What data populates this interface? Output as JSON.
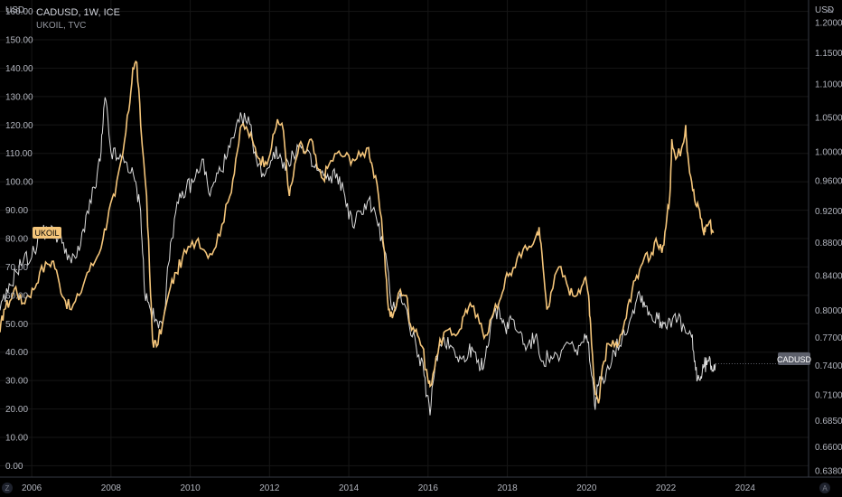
{
  "chart_data": {
    "type": "line",
    "title": "CADUSD, 1W, ICE",
    "subtitle": "UKOIL, TVC",
    "left_axis": {
      "unit": "USD",
      "range": [
        -4,
        164
      ],
      "ticks": [
        "160.00",
        "150.00",
        "140.00",
        "130.00",
        "120.00",
        "110.00",
        "100.00",
        "90.00",
        "80.00",
        "70.00",
        "60.00",
        "50.00",
        "40.00",
        "30.00",
        "20.00",
        "10.00",
        "0.00"
      ]
    },
    "right_axis": {
      "unit": "USD",
      "scale": "log",
      "range": [
        0.6325,
        1.2386
      ],
      "ticks": [
        "1.2000",
        "1.1500",
        "1.1000",
        "1.0500",
        "1.0000",
        "0.9600",
        "0.9200",
        "0.8800",
        "0.8400",
        "0.8000",
        "0.7700",
        "0.7400",
        "0.7100",
        "0.6850",
        "0.6600",
        "0.6380"
      ]
    },
    "x_axis": {
      "range": [
        2005.2,
        2025.6
      ],
      "ticks": [
        "2006",
        "2008",
        "2010",
        "2012",
        "2014",
        "2016",
        "2018",
        "2020",
        "2022",
        "2024"
      ]
    },
    "series": [
      {
        "name": "UKOIL",
        "color": "#f4c57a",
        "axis": "left",
        "last_value_label": "UKOIL",
        "points": [
          [
            2005.2,
            47
          ],
          [
            2005.3,
            55
          ],
          [
            2005.45,
            58
          ],
          [
            2005.6,
            63
          ],
          [
            2005.75,
            57
          ],
          [
            2005.9,
            60
          ],
          [
            2006.05,
            62
          ],
          [
            2006.2,
            68
          ],
          [
            2006.4,
            71
          ],
          [
            2006.55,
            72
          ],
          [
            2006.7,
            64
          ],
          [
            2006.85,
            58
          ],
          [
            2007.0,
            55
          ],
          [
            2007.2,
            60
          ],
          [
            2007.4,
            68
          ],
          [
            2007.6,
            72
          ],
          [
            2007.8,
            80
          ],
          [
            2007.95,
            90
          ],
          [
            2008.1,
            95
          ],
          [
            2008.3,
            110
          ],
          [
            2008.45,
            125
          ],
          [
            2008.55,
            140
          ],
          [
            2008.65,
            142
          ],
          [
            2008.75,
            120
          ],
          [
            2008.9,
            95
          ],
          [
            2009.0,
            60
          ],
          [
            2009.05,
            44
          ],
          [
            2009.15,
            42
          ],
          [
            2009.3,
            50
          ],
          [
            2009.5,
            63
          ],
          [
            2009.65,
            68
          ],
          [
            2009.8,
            73
          ],
          [
            2010.0,
            77
          ],
          [
            2010.2,
            80
          ],
          [
            2010.4,
            75
          ],
          [
            2010.6,
            76
          ],
          [
            2010.8,
            85
          ],
          [
            2011.0,
            95
          ],
          [
            2011.15,
            108
          ],
          [
            2011.3,
            120
          ],
          [
            2011.45,
            118
          ],
          [
            2011.6,
            113
          ],
          [
            2011.75,
            108
          ],
          [
            2011.9,
            107
          ],
          [
            2012.05,
            112
          ],
          [
            2012.2,
            122
          ],
          [
            2012.35,
            118
          ],
          [
            2012.5,
            95
          ],
          [
            2012.6,
            102
          ],
          [
            2012.75,
            113
          ],
          [
            2012.9,
            110
          ],
          [
            2013.05,
            115
          ],
          [
            2013.2,
            105
          ],
          [
            2013.35,
            101
          ],
          [
            2013.5,
            106
          ],
          [
            2013.7,
            110
          ],
          [
            2013.9,
            109
          ],
          [
            2014.1,
            108
          ],
          [
            2014.3,
            109
          ],
          [
            2014.5,
            112
          ],
          [
            2014.6,
            105
          ],
          [
            2014.75,
            95
          ],
          [
            2014.9,
            75
          ],
          [
            2015.0,
            55
          ],
          [
            2015.1,
            52
          ],
          [
            2015.3,
            62
          ],
          [
            2015.45,
            60
          ],
          [
            2015.55,
            50
          ],
          [
            2015.7,
            48
          ],
          [
            2015.85,
            42
          ],
          [
            2016.0,
            30
          ],
          [
            2016.05,
            28
          ],
          [
            2016.2,
            38
          ],
          [
            2016.4,
            47
          ],
          [
            2016.6,
            46
          ],
          [
            2016.8,
            48
          ],
          [
            2016.95,
            55
          ],
          [
            2017.1,
            56
          ],
          [
            2017.3,
            50
          ],
          [
            2017.45,
            46
          ],
          [
            2017.6,
            52
          ],
          [
            2017.8,
            58
          ],
          [
            2017.95,
            66
          ],
          [
            2018.1,
            67
          ],
          [
            2018.3,
            75
          ],
          [
            2018.5,
            76
          ],
          [
            2018.7,
            80
          ],
          [
            2018.8,
            84
          ],
          [
            2018.9,
            70
          ],
          [
            2019.0,
            55
          ],
          [
            2019.1,
            61
          ],
          [
            2019.3,
            70
          ],
          [
            2019.5,
            64
          ],
          [
            2019.65,
            60
          ],
          [
            2019.8,
            62
          ],
          [
            2019.95,
            66
          ],
          [
            2020.05,
            60
          ],
          [
            2020.1,
            50
          ],
          [
            2020.2,
            28
          ],
          [
            2020.3,
            22
          ],
          [
            2020.4,
            35
          ],
          [
            2020.55,
            43
          ],
          [
            2020.7,
            42
          ],
          [
            2020.85,
            46
          ],
          [
            2021.0,
            52
          ],
          [
            2021.15,
            62
          ],
          [
            2021.3,
            66
          ],
          [
            2021.45,
            73
          ],
          [
            2021.6,
            73
          ],
          [
            2021.75,
            80
          ],
          [
            2021.9,
            75
          ],
          [
            2022.0,
            84
          ],
          [
            2022.1,
            95
          ],
          [
            2022.15,
            115
          ],
          [
            2022.25,
            108
          ],
          [
            2022.4,
            112
          ],
          [
            2022.5,
            120
          ],
          [
            2022.55,
            110
          ],
          [
            2022.65,
            100
          ],
          [
            2022.75,
            92
          ],
          [
            2022.85,
            90
          ],
          [
            2022.95,
            82
          ],
          [
            2023.0,
            84
          ],
          [
            2023.1,
            86
          ],
          [
            2023.2,
            82
          ]
        ]
      },
      {
        "name": "CADUSD",
        "color": "#dcdcdc",
        "axis": "right",
        "last_value_label": "CADUSD",
        "points": [
          [
            2005.2,
            0.8
          ],
          [
            2005.4,
            0.82
          ],
          [
            2005.6,
            0.845
          ],
          [
            2005.8,
            0.86
          ],
          [
            2006.0,
            0.862
          ],
          [
            2006.2,
            0.89
          ],
          [
            2006.4,
            0.895
          ],
          [
            2006.6,
            0.89
          ],
          [
            2006.8,
            0.88
          ],
          [
            2007.0,
            0.855
          ],
          [
            2007.2,
            0.87
          ],
          [
            2007.4,
            0.92
          ],
          [
            2007.6,
            0.95
          ],
          [
            2007.75,
            1.0
          ],
          [
            2007.85,
            1.08
          ],
          [
            2008.0,
            1.0
          ],
          [
            2008.2,
            0.99
          ],
          [
            2008.4,
            0.985
          ],
          [
            2008.6,
            0.96
          ],
          [
            2008.75,
            0.92
          ],
          [
            2008.85,
            0.82
          ],
          [
            2009.0,
            0.8
          ],
          [
            2009.2,
            0.78
          ],
          [
            2009.35,
            0.8
          ],
          [
            2009.5,
            0.88
          ],
          [
            2009.7,
            0.93
          ],
          [
            2009.9,
            0.95
          ],
          [
            2010.1,
            0.96
          ],
          [
            2010.3,
            0.99
          ],
          [
            2010.5,
            0.94
          ],
          [
            2010.7,
            0.97
          ],
          [
            2010.9,
            0.99
          ],
          [
            2011.1,
            1.02
          ],
          [
            2011.3,
            1.05
          ],
          [
            2011.5,
            1.04
          ],
          [
            2011.7,
            0.98
          ],
          [
            2011.9,
            0.97
          ],
          [
            2012.1,
            1.0
          ],
          [
            2012.3,
            0.99
          ],
          [
            2012.5,
            0.98
          ],
          [
            2012.7,
            1.01
          ],
          [
            2012.9,
            1.0
          ],
          [
            2013.1,
            0.98
          ],
          [
            2013.3,
            0.97
          ],
          [
            2013.5,
            0.96
          ],
          [
            2013.7,
            0.97
          ],
          [
            2013.9,
            0.94
          ],
          [
            2014.1,
            0.9
          ],
          [
            2014.3,
            0.92
          ],
          [
            2014.5,
            0.935
          ],
          [
            2014.7,
            0.91
          ],
          [
            2014.9,
            0.87
          ],
          [
            2015.1,
            0.8
          ],
          [
            2015.3,
            0.82
          ],
          [
            2015.5,
            0.79
          ],
          [
            2015.7,
            0.76
          ],
          [
            2015.9,
            0.73
          ],
          [
            2016.05,
            0.69
          ],
          [
            2016.2,
            0.75
          ],
          [
            2016.4,
            0.77
          ],
          [
            2016.6,
            0.76
          ],
          [
            2016.8,
            0.75
          ],
          [
            2016.95,
            0.745
          ],
          [
            2017.1,
            0.76
          ],
          [
            2017.3,
            0.735
          ],
          [
            2017.45,
            0.75
          ],
          [
            2017.6,
            0.79
          ],
          [
            2017.8,
            0.8
          ],
          [
            2017.95,
            0.78
          ],
          [
            2018.1,
            0.79
          ],
          [
            2018.3,
            0.775
          ],
          [
            2018.5,
            0.76
          ],
          [
            2018.7,
            0.77
          ],
          [
            2018.9,
            0.745
          ],
          [
            2019.1,
            0.75
          ],
          [
            2019.3,
            0.745
          ],
          [
            2019.5,
            0.765
          ],
          [
            2019.7,
            0.755
          ],
          [
            2019.9,
            0.765
          ],
          [
            2020.05,
            0.765
          ],
          [
            2020.2,
            0.7
          ],
          [
            2020.3,
            0.72
          ],
          [
            2020.5,
            0.735
          ],
          [
            2020.7,
            0.755
          ],
          [
            2020.9,
            0.77
          ],
          [
            2021.1,
            0.79
          ],
          [
            2021.3,
            0.82
          ],
          [
            2021.45,
            0.81
          ],
          [
            2021.6,
            0.795
          ],
          [
            2021.8,
            0.79
          ],
          [
            2021.95,
            0.785
          ],
          [
            2022.1,
            0.79
          ],
          [
            2022.3,
            0.79
          ],
          [
            2022.5,
            0.775
          ],
          [
            2022.65,
            0.77
          ],
          [
            2022.75,
            0.735
          ],
          [
            2022.85,
            0.725
          ],
          [
            2022.95,
            0.738
          ],
          [
            2023.05,
            0.745
          ],
          [
            2023.15,
            0.74
          ],
          [
            2023.25,
            0.742
          ]
        ]
      }
    ],
    "grid": true,
    "legend": "top-left"
  },
  "ui": {
    "top_right_icon": "chevron-up-icon",
    "bottom_left_button": "Z",
    "bottom_right_button": "A",
    "colors": {
      "background": "#000000",
      "grid": "#1a1a1a",
      "axis_text": "#b2b5be",
      "oil": "#f4c57a",
      "cad": "#dcdcdc"
    }
  }
}
